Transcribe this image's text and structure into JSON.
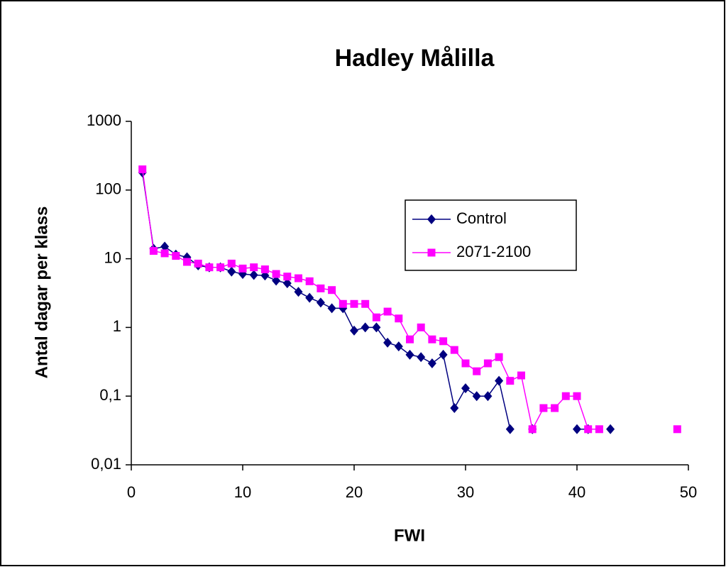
{
  "chart_data": {
    "type": "line",
    "title": "Hadley Målilla",
    "x_label": "FWI",
    "y_label": "Antal dagar per klass",
    "x": [
      1,
      2,
      3,
      4,
      5,
      6,
      7,
      8,
      9,
      10,
      11,
      12,
      13,
      14,
      15,
      16,
      17,
      18,
      19,
      20,
      21,
      22,
      23,
      24,
      25,
      26,
      27,
      28,
      29,
      30,
      31,
      32,
      33,
      34,
      35,
      36,
      37,
      38,
      39,
      40,
      41,
      42,
      43,
      44,
      45,
      46,
      47,
      48,
      49
    ],
    "series": [
      {
        "name": "Control",
        "color": "#000080",
        "marker": "diamond",
        "values": [
          180,
          14,
          15,
          11.5,
          10.5,
          8,
          7.5,
          7.5,
          6.5,
          6,
          5.8,
          5.7,
          4.8,
          4.4,
          3.3,
          2.7,
          2.3,
          1.9,
          1.9,
          0.9,
          1.0,
          1.0,
          0.6,
          0.53,
          0.4,
          0.37,
          0.3,
          0.4,
          0.067,
          0.13,
          0.1,
          0.1,
          0.167,
          0.033,
          null,
          0.033,
          null,
          null,
          null,
          0.033,
          0.033,
          null,
          0.033,
          null,
          null,
          null,
          null,
          null,
          null
        ]
      },
      {
        "name": "2071-2100",
        "color": "#ff00ff",
        "marker": "square",
        "values": [
          200,
          13,
          12,
          11,
          9,
          8.5,
          7.5,
          7.5,
          8.5,
          7.2,
          7.5,
          7,
          6,
          5.5,
          5.2,
          4.7,
          3.7,
          3.5,
          2.2,
          2.2,
          2.2,
          1.4,
          1.7,
          1.35,
          0.67,
          1.0,
          0.67,
          0.63,
          0.47,
          0.3,
          0.23,
          0.3,
          0.37,
          0.167,
          0.2,
          0.033,
          0.067,
          0.067,
          0.1,
          0.1,
          0.033,
          0.033,
          null,
          null,
          null,
          null,
          null,
          null,
          0.033
        ]
      }
    ],
    "xlim": [
      0,
      50
    ],
    "xticks": [
      0,
      10,
      20,
      30,
      40,
      50
    ],
    "ylim": [
      0.01,
      1000
    ],
    "yscale": "log",
    "yticks": [
      {
        "value": 0.01,
        "label": "0,01"
      },
      {
        "value": 0.1,
        "label": "0,1"
      },
      1,
      10,
      100,
      1000
    ],
    "legend": "right"
  }
}
